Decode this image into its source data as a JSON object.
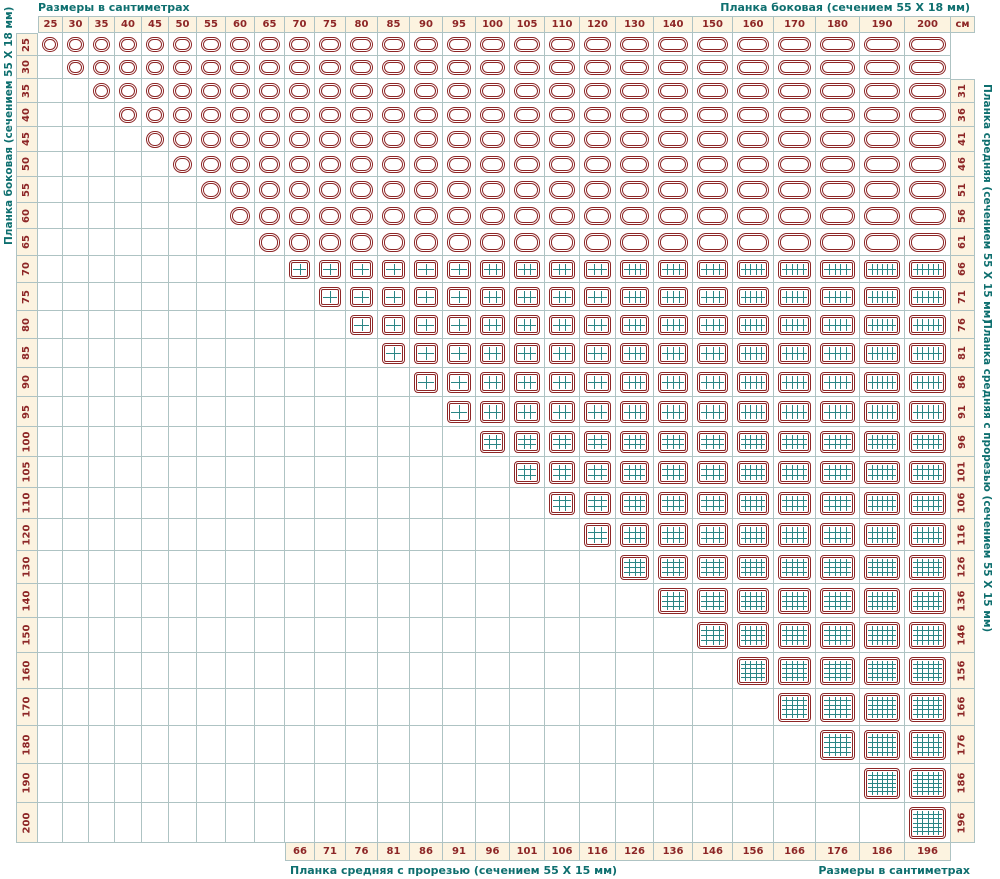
{
  "labels": {
    "top_left": "Размеры в сантиметрах",
    "top_right": "Планка боковая (сечением 55 Х 18 мм)",
    "left_vertical": "Планка боковая (сечением 55 Х 18 мм)",
    "right_vertical_top": "Планка средняя (сечением 55 Х 15 мм)",
    "right_vertical_bottom": "Планка средняя с прорезью (сечением 55 Х 15 мм)",
    "bottom_center": "Планка средняя с прорезью (сечением 55 Х 15 мм)",
    "bottom_right": "Размеры в сантиметрах",
    "unit": "см"
  },
  "colors": {
    "background": "#ffffff",
    "frame": "#8d2626",
    "teal_line": "#2a8585",
    "grid_line": "#aec3c3",
    "header_text": "#8d2626",
    "header_bg": "#fcf3e0",
    "label_text": "#0e6f6f"
  },
  "chart_data": {
    "type": "table",
    "unit": "см",
    "columns_cm": [
      25,
      30,
      35,
      40,
      45,
      50,
      55,
      60,
      65,
      70,
      75,
      80,
      85,
      90,
      95,
      100,
      105,
      110,
      120,
      130,
      140,
      150,
      160,
      170,
      180,
      190,
      200
    ],
    "rows_cm": [
      25,
      30,
      35,
      40,
      45,
      50,
      55,
      60,
      65,
      70,
      75,
      80,
      85,
      90,
      95,
      100,
      105,
      110,
      120,
      130,
      140,
      150,
      160,
      170,
      180,
      190,
      200
    ],
    "cell_icon_rule": "frame icon shown when column >= row (upper-right staircase), lower-left triangle empty",
    "icon_divider_rule": "teal vertical and horizontal middle-plank lines drawn inside icons for sizes >= 70 см, count grows with size",
    "bottom_values": [
      null,
      null,
      null,
      null,
      null,
      null,
      null,
      null,
      null,
      66,
      71,
      76,
      81,
      86,
      91,
      96,
      101,
      106,
      116,
      126,
      136,
      146,
      156,
      166,
      176,
      186,
      196
    ],
    "right_values": [
      null,
      null,
      31,
      36,
      41,
      46,
      51,
      56,
      61,
      66,
      71,
      76,
      81,
      86,
      91,
      96,
      101,
      106,
      116,
      126,
      136,
      146,
      156,
      166,
      176,
      186,
      196
    ]
  }
}
